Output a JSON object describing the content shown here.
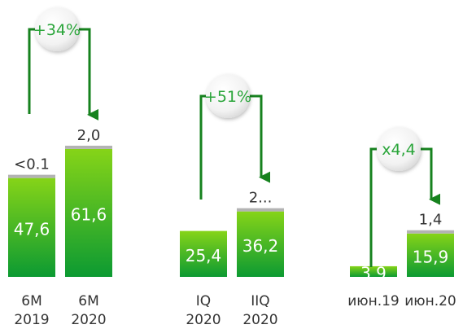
{
  "chart_data": [
    {
      "type": "bar",
      "stacked": true,
      "categories": [
        "6M\n2019",
        "6M\n2020"
      ],
      "series": [
        {
          "values": [
            47.6,
            61.6
          ],
          "labels": [
            "47,6",
            "61,6"
          ]
        },
        {
          "values": [
            0.1,
            2.0
          ],
          "labels": [
            "<0.1",
            "2,0"
          ]
        }
      ],
      "change_badge": "+34%"
    },
    {
      "type": "bar",
      "stacked": true,
      "categories": [
        "IQ\n2020",
        "IIQ\n2020"
      ],
      "series": [
        {
          "values": [
            25.4,
            36.2
          ],
          "labels": [
            "25,4",
            "36,2"
          ]
        },
        {
          "values": [
            0,
            2.0
          ],
          "labels": [
            "",
            "2..."
          ]
        }
      ],
      "change_badge": "+51%"
    },
    {
      "type": "bar",
      "stacked": true,
      "categories": [
        "июн.19",
        "июн.20"
      ],
      "series": [
        {
          "values": [
            3.9,
            15.9
          ],
          "labels": [
            "3,9",
            "15,9"
          ]
        },
        {
          "values": [
            0,
            1.4
          ],
          "labels": [
            "",
            "1,4"
          ]
        }
      ],
      "change_badge": "x4,4"
    }
  ],
  "colors": {
    "bar_top": "#86d418",
    "bar_bottom": "#0c9a32",
    "cap": "#b3b3b3",
    "arrow": "#16821e",
    "badge_text": "#2aa53a",
    "value_text": "#ffffff",
    "label_text": "#333333"
  }
}
